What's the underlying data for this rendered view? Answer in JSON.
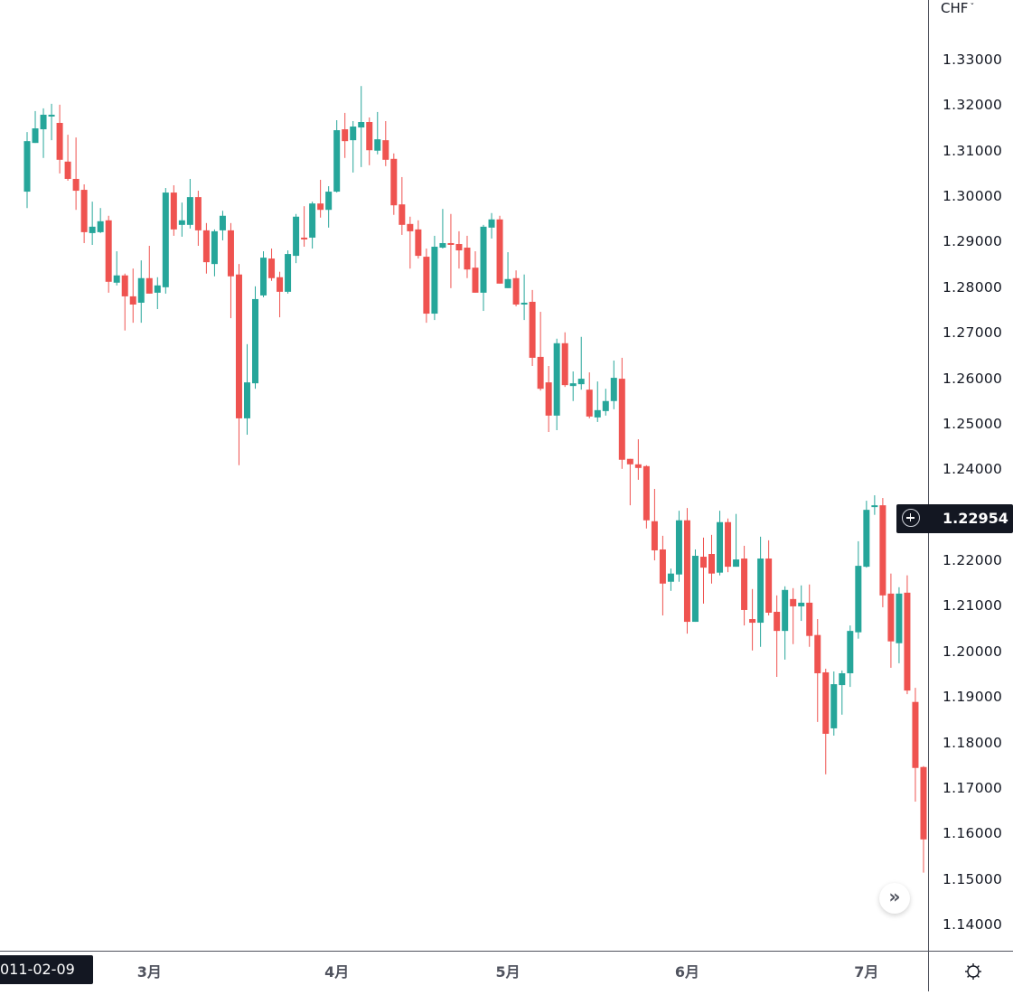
{
  "colors": {
    "up": "#26a69a",
    "down": "#ef5350",
    "axis": "#50535e",
    "label_bg": "#131722"
  },
  "price_axis": {
    "currency": "CHF",
    "current_price": "1.22954"
  },
  "time_axis": {
    "crosshair_date": "011-02-09"
  },
  "chart_data": {
    "type": "candlestick",
    "title": "",
    "y_ticks": [
      "1.33000",
      "1.32000",
      "1.31000",
      "1.30000",
      "1.29000",
      "1.28000",
      "1.27000",
      "1.26000",
      "1.25000",
      "1.24000",
      "1.23000",
      "1.22000",
      "1.21000",
      "1.20000",
      "1.19000",
      "1.18000",
      "1.17000",
      "1.16000",
      "1.15000",
      "1.14000"
    ],
    "y_tick_values": [
      1.33,
      1.32,
      1.31,
      1.3,
      1.29,
      1.28,
      1.27,
      1.26,
      1.25,
      1.24,
      1.23,
      1.22,
      1.21,
      1.2,
      1.19,
      1.18,
      1.17,
      1.16,
      1.15,
      1.14
    ],
    "hidden_tick": "1.23000",
    "x_labels": [
      {
        "label": "3月",
        "index": 15
      },
      {
        "label": "4月",
        "index": 38
      },
      {
        "label": "5月",
        "index": 59
      },
      {
        "label": "6月",
        "index": 81
      },
      {
        "label": "7月",
        "index": 103
      }
    ],
    "ylim": [
      1.1357,
      1.3367
    ],
    "ohlc_order": [
      "open",
      "high",
      "low",
      "close"
    ],
    "candles": [
      [
        1.3012,
        1.3143,
        1.2976,
        1.3123
      ],
      [
        1.3119,
        1.3189,
        1.3119,
        1.3151
      ],
      [
        1.3149,
        1.3195,
        1.3086,
        1.3181
      ],
      [
        1.3177,
        1.3205,
        1.3125,
        1.3181
      ],
      [
        1.3163,
        1.3203,
        1.3052,
        1.3082
      ],
      [
        1.3078,
        1.3137,
        1.3036,
        1.304
      ],
      [
        1.304,
        1.3131,
        1.2972,
        1.3014
      ],
      [
        1.3016,
        1.3028,
        1.2899,
        1.2923
      ],
      [
        1.2921,
        1.299,
        1.2895,
        1.2935
      ],
      [
        1.2923,
        1.2976,
        1.2921,
        1.2947
      ],
      [
        1.2949,
        1.2959,
        1.279,
        1.2814
      ],
      [
        1.2812,
        1.2881,
        1.2806,
        1.2828
      ],
      [
        1.2828,
        1.2832,
        1.2707,
        1.2782
      ],
      [
        1.2782,
        1.2843,
        1.2724,
        1.2764
      ],
      [
        1.2768,
        1.2861,
        1.2724,
        1.2822
      ],
      [
        1.2822,
        1.2893,
        1.2788,
        1.2788
      ],
      [
        1.279,
        1.2824,
        1.2754,
        1.2806
      ],
      [
        1.2802,
        1.302,
        1.2788,
        1.301
      ],
      [
        1.301,
        1.3026,
        1.2915,
        1.2929
      ],
      [
        1.2939,
        1.2988,
        1.2913,
        1.2949
      ],
      [
        1.2939,
        1.304,
        1.2931,
        1.3
      ],
      [
        1.3,
        1.3014,
        1.2893,
        1.2927
      ],
      [
        1.2927,
        1.2943,
        1.2832,
        1.2857
      ],
      [
        1.2853,
        1.2929,
        1.2826,
        1.2925
      ],
      [
        1.2927,
        1.297,
        1.2905,
        1.2959
      ],
      [
        1.2927,
        1.2943,
        1.2734,
        1.2826
      ],
      [
        1.283,
        1.2853,
        1.2411,
        1.2514
      ],
      [
        1.2514,
        1.2677,
        1.2478,
        1.2593
      ],
      [
        1.2591,
        1.2804,
        1.2579,
        1.2776
      ],
      [
        1.2784,
        1.2881,
        1.278,
        1.2867
      ],
      [
        1.2865,
        1.2887,
        1.2816,
        1.2822
      ],
      [
        1.2824,
        1.2836,
        1.2736,
        1.2792
      ],
      [
        1.2792,
        1.2883,
        1.2788,
        1.2875
      ],
      [
        1.2871,
        1.2963,
        1.2855,
        1.2957
      ],
      [
        1.2911,
        1.298,
        1.2891,
        1.2907
      ],
      [
        1.2911,
        1.299,
        1.2887,
        1.2986
      ],
      [
        1.2986,
        1.3038,
        1.2955,
        1.2972
      ],
      [
        1.2972,
        1.3024,
        1.2933,
        1.3012
      ],
      [
        1.3012,
        1.3169,
        1.301,
        1.3147
      ],
      [
        1.3149,
        1.3185,
        1.3086,
        1.3123
      ],
      [
        1.3125,
        1.3167,
        1.3054,
        1.3155
      ],
      [
        1.3153,
        1.3244,
        1.3066,
        1.3165
      ],
      [
        1.3165,
        1.3175,
        1.307,
        1.3103
      ],
      [
        1.3102,
        1.3187,
        1.3094,
        1.3127
      ],
      [
        1.3125,
        1.3167,
        1.3068,
        1.3082
      ],
      [
        1.3084,
        1.3096,
        1.2961,
        1.2982
      ],
      [
        1.2984,
        1.3044,
        1.2917,
        1.2939
      ],
      [
        1.2941,
        1.2957,
        1.2843,
        1.2925
      ],
      [
        1.2929,
        1.2949,
        1.2865,
        1.2871
      ],
      [
        1.2869,
        1.2887,
        1.2724,
        1.2744
      ],
      [
        1.2744,
        1.2915,
        1.273,
        1.2891
      ],
      [
        1.2889,
        1.2974,
        1.2887,
        1.2899
      ],
      [
        1.2899,
        1.2963,
        1.28,
        1.2895
      ],
      [
        1.2897,
        1.2925,
        1.2843,
        1.2883
      ],
      [
        1.2889,
        1.2915,
        1.2822,
        1.2841
      ],
      [
        1.2845,
        1.2881,
        1.279,
        1.279
      ],
      [
        1.279,
        1.2939,
        1.275,
        1.2935
      ],
      [
        1.2933,
        1.2965,
        1.2909,
        1.2951
      ],
      [
        1.2951,
        1.2959,
        1.281,
        1.281
      ],
      [
        1.28,
        1.2879,
        1.28,
        1.282
      ],
      [
        1.2822,
        1.2839,
        1.276,
        1.2764
      ],
      [
        1.2766,
        1.283,
        1.273,
        1.2768
      ],
      [
        1.277,
        1.2796,
        1.2629,
        1.2647
      ],
      [
        1.2649,
        1.2748,
        1.2575,
        1.2579
      ],
      [
        1.2593,
        1.2629,
        1.2484,
        1.252
      ],
      [
        1.252,
        1.2689,
        1.2488,
        1.2679
      ],
      [
        1.2679,
        1.2703,
        1.2583,
        1.2587
      ],
      [
        1.2585,
        1.2617,
        1.2552,
        1.2591
      ],
      [
        1.2589,
        1.2693,
        1.2577,
        1.2601
      ],
      [
        1.2577,
        1.2615,
        1.2514,
        1.2518
      ],
      [
        1.2516,
        1.2595,
        1.2506,
        1.2532
      ],
      [
        1.253,
        1.2579,
        1.252,
        1.2552
      ],
      [
        1.2552,
        1.2641,
        1.2534,
        1.2603
      ],
      [
        1.2601,
        1.2647,
        1.2403,
        1.2423
      ],
      [
        1.2425,
        1.2425,
        1.2323,
        1.2413
      ],
      [
        1.2413,
        1.2468,
        1.2379,
        1.2405
      ],
      [
        1.2409,
        1.2411,
        1.2272,
        1.229
      ],
      [
        1.2288,
        1.2359,
        1.2202,
        1.2224
      ],
      [
        1.2226,
        1.2256,
        1.2081,
        1.2151
      ],
      [
        1.2155,
        1.2184,
        1.2135,
        1.2173
      ],
      [
        1.2171,
        1.2311,
        1.2155,
        1.229
      ],
      [
        1.229,
        1.2317,
        1.2041,
        1.2067
      ],
      [
        1.2067,
        1.2226,
        1.2067,
        1.2212
      ],
      [
        1.221,
        1.2252,
        1.2107,
        1.2186
      ],
      [
        1.2216,
        1.2258,
        1.2151,
        1.2173
      ],
      [
        1.2175,
        1.2311,
        1.2169,
        1.2286
      ],
      [
        1.2286,
        1.2294,
        1.2176,
        1.2188
      ],
      [
        1.2188,
        1.2304,
        1.2188,
        1.2204
      ],
      [
        1.2206,
        1.2234,
        1.2059,
        1.2093
      ],
      [
        1.2073,
        1.2139,
        1.2004,
        1.2065
      ],
      [
        1.2065,
        1.2254,
        1.2012,
        1.2206
      ],
      [
        1.2206,
        1.2246,
        1.2081,
        1.2087
      ],
      [
        1.2089,
        1.2125,
        1.1946,
        1.2047
      ],
      [
        1.2047,
        1.2145,
        1.1984,
        1.2137
      ],
      [
        1.2117,
        1.2141,
        1.2018,
        1.2101
      ],
      [
        1.2101,
        1.2147,
        1.2069,
        1.2109
      ],
      [
        1.2109,
        1.2149,
        1.2012,
        1.2036
      ],
      [
        1.2038,
        1.2073,
        1.1847,
        1.1954
      ],
      [
        1.1956,
        1.1964,
        1.1732,
        1.1821
      ],
      [
        1.1833,
        1.1958,
        1.1817,
        1.193
      ],
      [
        1.1928,
        1.196,
        1.1863,
        1.1954
      ],
      [
        1.1954,
        1.2059,
        1.1924,
        1.2047
      ],
      [
        1.2044,
        1.2244,
        1.203,
        1.219
      ],
      [
        1.2188,
        1.2333,
        1.2186,
        1.2313
      ],
      [
        1.2321,
        1.2345,
        1.2302,
        1.2323
      ],
      [
        1.2323,
        1.2339,
        1.2099,
        1.2125
      ],
      [
        1.2129,
        1.2173,
        1.1966,
        1.2024
      ],
      [
        1.202,
        1.2143,
        1.1976,
        1.2129
      ],
      [
        1.2131,
        1.2169,
        1.1908,
        1.1916
      ],
      [
        1.1891,
        1.1922,
        1.1672,
        1.1746
      ],
      [
        1.1748,
        1.175,
        1.1516,
        1.1589
      ]
    ]
  }
}
